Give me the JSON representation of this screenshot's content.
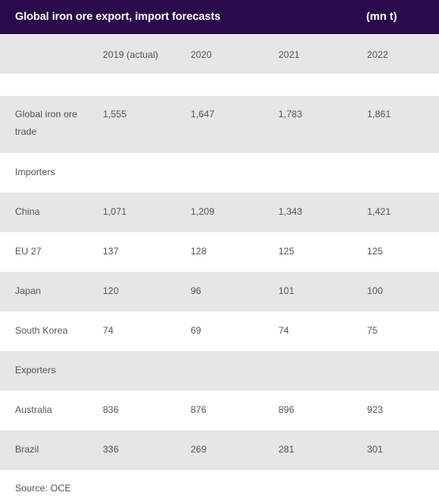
{
  "header": {
    "title": "Global iron ore export, import forecasts",
    "unit": "(mn t)"
  },
  "columns": [
    "",
    "2019 (actual)",
    "2020",
    "2021",
    "2022"
  ],
  "rows": [
    {
      "label": "Global iron ore trade",
      "values": [
        "1,555",
        "1,647",
        "1,783",
        "1,861"
      ]
    },
    {
      "label": "Importers",
      "values": [
        "",
        "",
        "",
        ""
      ]
    },
    {
      "label": "China",
      "values": [
        "1,071",
        "1,209",
        "1,343",
        "1,421"
      ]
    },
    {
      "label": "EU 27",
      "values": [
        "137",
        "128",
        "125",
        "125"
      ]
    },
    {
      "label": "Japan",
      "values": [
        "120",
        "96",
        "101",
        "100"
      ]
    },
    {
      "label": "South Korea",
      "values": [
        "74",
        "69",
        "74",
        "75"
      ]
    },
    {
      "label": "Exporters",
      "values": [
        "",
        "",
        "",
        ""
      ]
    },
    {
      "label": "Australia",
      "values": [
        "836",
        "876",
        "896",
        "923"
      ]
    },
    {
      "label": "Brazil",
      "values": [
        "336",
        "269",
        "281",
        "301"
      ]
    }
  ],
  "source": "Source: OCE"
}
